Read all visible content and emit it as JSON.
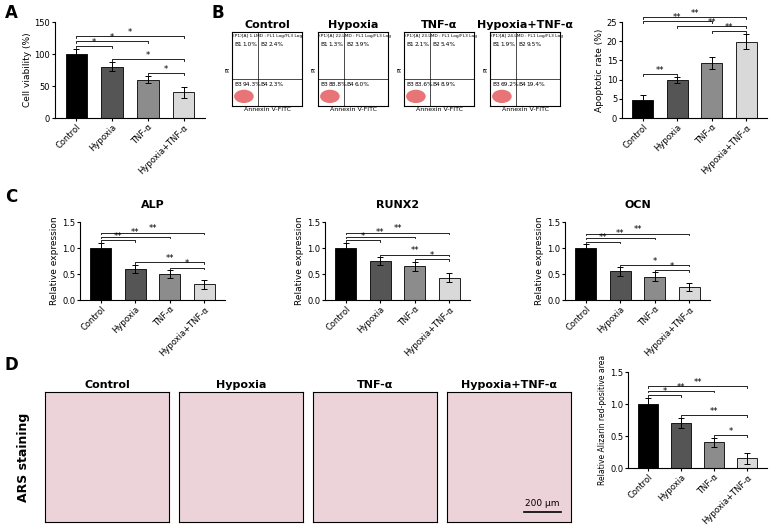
{
  "panel_labels": [
    "A",
    "B",
    "C",
    "D"
  ],
  "chart_data": [
    {
      "type": "bar",
      "ylabel": "Cell viability (%)",
      "categories": [
        "Control",
        "Hypoxia",
        "TNF-α",
        "Hypoxia+TNF-α"
      ],
      "values": [
        100,
        80,
        60,
        40
      ],
      "errors": [
        8,
        7,
        6,
        9
      ],
      "colors": [
        "#000000",
        "#555555",
        "#8c8c8c",
        "#d9d9d9"
      ],
      "ylim": [
        0,
        150
      ],
      "yticks": [
        0,
        50,
        100,
        150
      ],
      "comparisons": [
        {
          "pair": [
            0,
            1
          ],
          "label": "*"
        },
        {
          "pair": [
            0,
            2
          ],
          "label": "*"
        },
        {
          "pair": [
            0,
            3
          ],
          "label": "*"
        },
        {
          "pair": [
            1,
            3
          ],
          "label": "*"
        },
        {
          "pair": [
            2,
            3
          ],
          "label": "*"
        }
      ]
    },
    {
      "type": "bar",
      "ylabel": "Apoptotic rate (%)",
      "categories": [
        "Control",
        "Hypoxia",
        "TNF-α",
        "Hypoxia+TNF-α"
      ],
      "values": [
        4.6,
        9.8,
        14.3,
        19.9
      ],
      "errors": [
        1.3,
        0.8,
        1.5,
        2.0
      ],
      "colors": [
        "#000000",
        "#555555",
        "#8c8c8c",
        "#d9d9d9"
      ],
      "ylim": [
        0,
        25
      ],
      "yticks": [
        0,
        5,
        10,
        15,
        20,
        25
      ],
      "comparisons": [
        {
          "pair": [
            0,
            1
          ],
          "label": "**"
        },
        {
          "pair": [
            0,
            2
          ],
          "label": "**"
        },
        {
          "pair": [
            0,
            3
          ],
          "label": "**"
        },
        {
          "pair": [
            1,
            3
          ],
          "label": "**"
        },
        {
          "pair": [
            2,
            3
          ],
          "label": "**"
        }
      ]
    },
    {
      "type": "bar",
      "title": "ALP",
      "ylabel": "Relative expression",
      "categories": [
        "Control",
        "Hypoxia",
        "TNF-α",
        "Hypoxia+TNF-α"
      ],
      "values": [
        1.0,
        0.6,
        0.5,
        0.3
      ],
      "errors": [
        0.1,
        0.08,
        0.08,
        0.08
      ],
      "colors": [
        "#000000",
        "#555555",
        "#8c8c8c",
        "#d9d9d9"
      ],
      "ylim": [
        0,
        1.5
      ],
      "yticks": [
        {
          "value": 0,
          "label": "0.0"
        },
        0.5,
        1.0,
        1.5
      ],
      "comparisons": [
        {
          "pair": [
            0,
            1
          ],
          "label": "**"
        },
        {
          "pair": [
            0,
            2
          ],
          "label": "**"
        },
        {
          "pair": [
            0,
            3
          ],
          "label": "**"
        },
        {
          "pair": [
            1,
            3
          ],
          "label": "**"
        },
        {
          "pair": [
            2,
            3
          ],
          "label": "*"
        }
      ]
    },
    {
      "type": "bar",
      "title": "RUNX2",
      "ylabel": "Relative expression",
      "categories": [
        "Control",
        "Hypoxia",
        "TNF-α",
        "Hypoxia+TNF-α"
      ],
      "values": [
        1.0,
        0.75,
        0.65,
        0.43
      ],
      "errors": [
        0.1,
        0.08,
        0.09,
        0.09
      ],
      "colors": [
        "#000000",
        "#555555",
        "#8c8c8c",
        "#d9d9d9"
      ],
      "ylim": [
        0,
        1.5
      ],
      "yticks": [
        {
          "value": 0,
          "label": "0.0"
        },
        0.5,
        1.0,
        1.5
      ],
      "comparisons": [
        {
          "pair": [
            0,
            1
          ],
          "label": "*"
        },
        {
          "pair": [
            0,
            2
          ],
          "label": "**"
        },
        {
          "pair": [
            0,
            3
          ],
          "label": "**"
        },
        {
          "pair": [
            1,
            3
          ],
          "label": "**"
        },
        {
          "pair": [
            2,
            3
          ],
          "label": "*"
        }
      ]
    },
    {
      "type": "bar",
      "title": "OCN",
      "ylabel": "Relative expression",
      "categories": [
        "Control",
        "Hypoxia",
        "TNF-α",
        "Hypoxia+TNF-α"
      ],
      "values": [
        1.0,
        0.55,
        0.45,
        0.25
      ],
      "errors": [
        0.08,
        0.08,
        0.08,
        0.07
      ],
      "colors": [
        "#000000",
        "#555555",
        "#8c8c8c",
        "#d9d9d9"
      ],
      "ylim": [
        0,
        1.5
      ],
      "yticks": [
        {
          "value": 0,
          "label": "0.0"
        },
        0.5,
        1.0,
        1.5
      ],
      "comparisons": [
        {
          "pair": [
            0,
            1
          ],
          "label": "**"
        },
        {
          "pair": [
            0,
            2
          ],
          "label": "**"
        },
        {
          "pair": [
            0,
            3
          ],
          "label": "**"
        },
        {
          "pair": [
            1,
            3
          ],
          "label": "*"
        },
        {
          "pair": [
            2,
            3
          ],
          "label": "*"
        }
      ]
    },
    {
      "type": "bar",
      "ylabel": "Relative Alizarin red-positive area",
      "categories": [
        "Control",
        "Hypoxia",
        "TNF-α",
        "Hypoxia+TNF-α"
      ],
      "values": [
        1.0,
        0.7,
        0.4,
        0.15
      ],
      "errors": [
        0.09,
        0.08,
        0.07,
        0.08
      ],
      "colors": [
        "#000000",
        "#555555",
        "#8c8c8c",
        "#d9d9d9"
      ],
      "ylim": [
        0,
        1.5
      ],
      "yticks": [
        {
          "value": 0,
          "label": "0.0"
        },
        0.5,
        1.0,
        1.5
      ],
      "comparisons": [
        {
          "pair": [
            0,
            1
          ],
          "label": "*"
        },
        {
          "pair": [
            0,
            2
          ],
          "label": "**"
        },
        {
          "pair": [
            0,
            3
          ],
          "label": "**"
        },
        {
          "pair": [
            1,
            3
          ],
          "label": "**"
        },
        {
          "pair": [
            2,
            3
          ],
          "label": "*"
        }
      ]
    }
  ],
  "flow_cytometry": {
    "x_label": "Annexin V-FITC",
    "y_label": "PI",
    "plots": [
      {
        "title": "Control",
        "header": "(P1)[A] 1.LMD : FL1 Log/FL3 Log",
        "quadrants": [
          {
            "name": "B1",
            "label": "1.0%"
          },
          {
            "name": "B2",
            "label": "2.4%"
          },
          {
            "name": "B3",
            "label": "94.3%"
          },
          {
            "name": "B4",
            "label": "2.3%"
          }
        ]
      },
      {
        "title": "Hypoxia",
        "header": "(P1)[A] 22.LMD : FL1 Log/FL3 Log",
        "quadrants": [
          {
            "name": "B1",
            "label": "1.3%"
          },
          {
            "name": "B2",
            "label": "3.9%"
          },
          {
            "name": "B3",
            "label": "88.8%"
          },
          {
            "name": "B4",
            "label": "6.0%"
          }
        ]
      },
      {
        "title": "TNF-α",
        "header": "(P1)[A] 23.LMD : FL1 Log/FL3 Log",
        "quadrants": [
          {
            "name": "B1",
            "label": "2.1%"
          },
          {
            "name": "B2",
            "label": "5.4%"
          },
          {
            "name": "B3",
            "label": "83.6%"
          },
          {
            "name": "B4",
            "label": "8.9%"
          }
        ]
      },
      {
        "title": "Hypoxia+TNF-α",
        "header": "(P1)[A] 24.LMD : FL1 Log/FL3 Log",
        "quadrants": [
          {
            "name": "B1",
            "label": "1.9%"
          },
          {
            "name": "B2",
            "label": "9.5%"
          },
          {
            "name": "B3",
            "label": "69.2%"
          },
          {
            "name": "B4",
            "label": "19.4%"
          }
        ]
      }
    ]
  },
  "staining": {
    "side_label": "ARS staining",
    "titles": [
      "Control",
      "Hypoxia",
      "TNF-α",
      "Hypoxia+TNF-α"
    ],
    "scale_bar": "200 μm"
  }
}
